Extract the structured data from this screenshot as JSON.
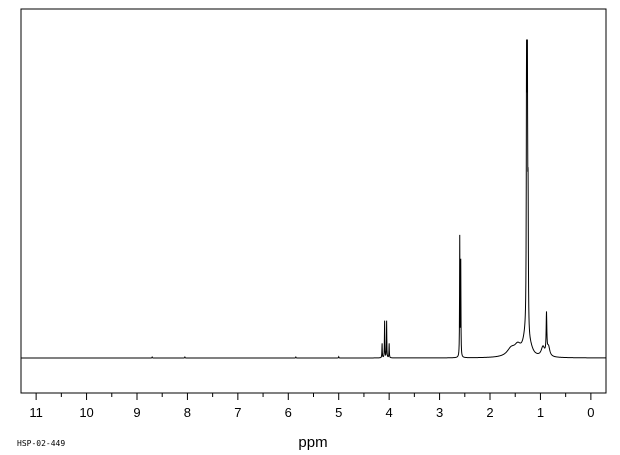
{
  "chart_data": {
    "type": "line",
    "title": "",
    "xlabel": "ppm",
    "ylabel": "",
    "code_label": "HSP-02-449",
    "x_reversed": true,
    "xlim": [
      11.3,
      -0.3
    ],
    "ylim": [
      0,
      100
    ],
    "x_major_ticks": [
      11,
      10,
      9,
      8,
      7,
      6,
      5,
      4,
      3,
      2,
      1,
      0
    ],
    "x_tick_labels": [
      "11",
      "10",
      "9",
      "8",
      "7",
      "6",
      "5",
      "4",
      "3",
      "2",
      "1",
      "0"
    ],
    "x_minor_step": 0.5,
    "grid": false,
    "legend": "none",
    "line_color": "#000000",
    "peaks": [
      {
        "ppm": 8.7,
        "height": 0.3,
        "width": 0.004
      },
      {
        "ppm": 8.05,
        "height": 0.3,
        "width": 0.004
      },
      {
        "ppm": 5.85,
        "height": 0.3,
        "width": 0.004
      },
      {
        "ppm": 5.0,
        "height": 0.4,
        "width": 0.004
      },
      {
        "ppm": 4.14,
        "height": 4.5,
        "width": 0.004
      },
      {
        "ppm": 4.09,
        "height": 11.6,
        "width": 0.004
      },
      {
        "ppm": 4.05,
        "height": 11.6,
        "width": 0.004
      },
      {
        "ppm": 4.0,
        "height": 4.5,
        "width": 0.004
      },
      {
        "ppm": 2.6,
        "height": 37.5,
        "width": 0.004
      },
      {
        "ppm": 2.58,
        "height": 29.7,
        "width": 0.004
      },
      {
        "ppm": 1.58,
        "height": 2.5,
        "width": 0.1
      },
      {
        "ppm": 1.45,
        "height": 3.0,
        "width": 0.08
      },
      {
        "ppm": 1.3,
        "height": 5.0,
        "width": 0.06
      },
      {
        "ppm": 1.275,
        "height": 84.5,
        "width": 0.006
      },
      {
        "ppm": 1.26,
        "height": 100.0,
        "width": 0.006
      },
      {
        "ppm": 1.245,
        "height": 37.5,
        "width": 0.006
      },
      {
        "ppm": 1.2,
        "height": 2.0,
        "width": 0.06
      },
      {
        "ppm": 0.95,
        "height": 3.0,
        "width": 0.04
      },
      {
        "ppm": 0.88,
        "height": 12.5,
        "width": 0.008
      },
      {
        "ppm": 0.84,
        "height": 3.0,
        "width": 0.03
      }
    ]
  }
}
